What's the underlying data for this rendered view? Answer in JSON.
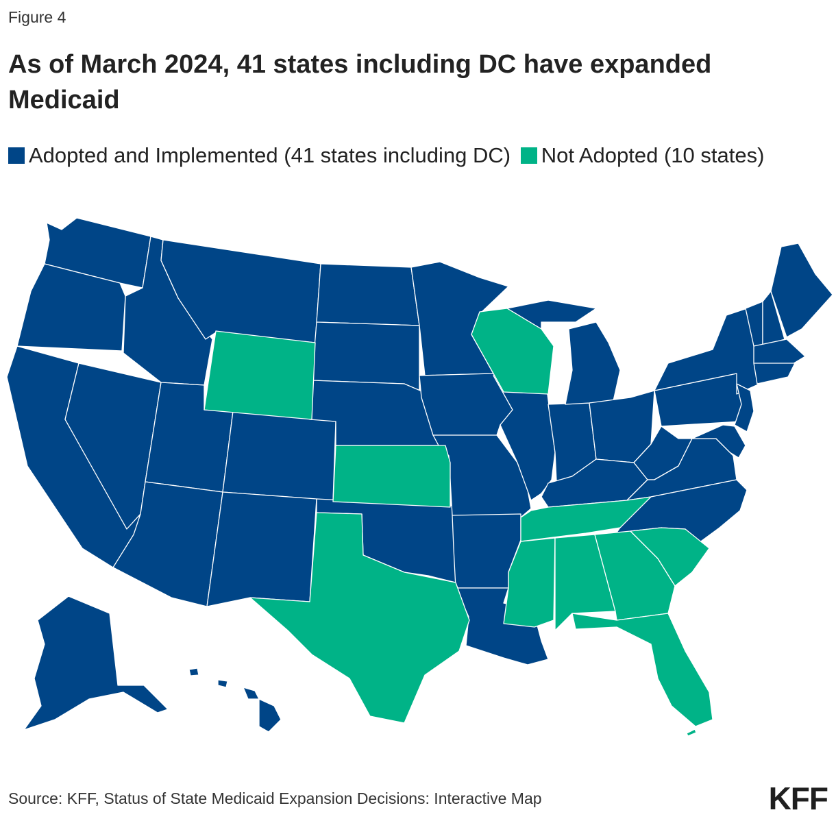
{
  "figure_label": "Figure 4",
  "title": "As of March 2024, 41 states including DC have expanded Medicaid",
  "legend": [
    {
      "label": "Adopted and Implemented (41 states including DC)",
      "color": "#004587"
    },
    {
      "label": "Not Adopted (10 states)",
      "color": "#00b387"
    }
  ],
  "source": "Source: KFF, Status of State Medicaid Expansion Decisions: Interactive Map",
  "logo_text": "KFF",
  "colors": {
    "adopted": "#004587",
    "not_adopted": "#00b387",
    "border": "#ffffff"
  },
  "states": {
    "not_adopted": [
      "Wyoming",
      "Kansas",
      "Texas",
      "Wisconsin",
      "Tennessee",
      "Mississippi",
      "Alabama",
      "Georgia",
      "South Carolina",
      "Florida"
    ]
  }
}
